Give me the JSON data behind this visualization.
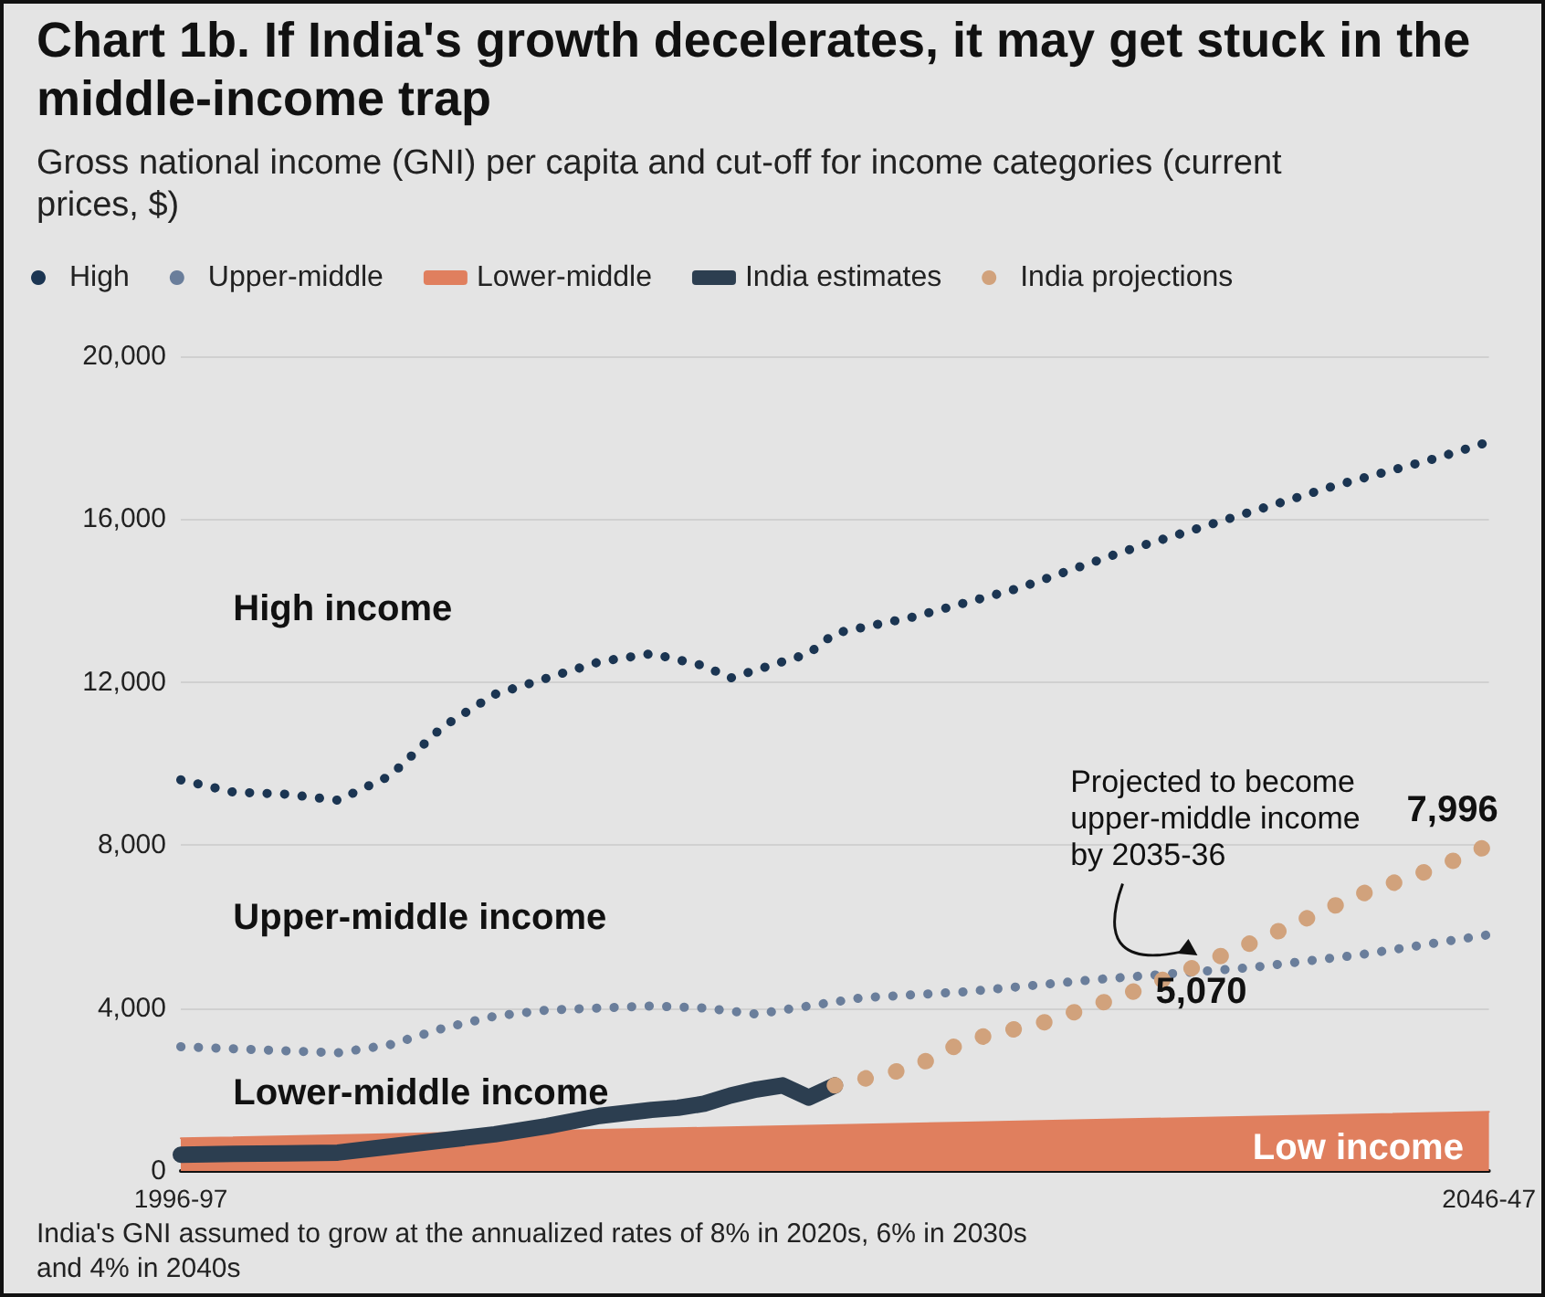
{
  "chart_data": {
    "type": "line",
    "title": "Chart 1b. If India's growth decelerates, it may get stuck in the middle-income trap",
    "subtitle": "Gross national income (GNI) per capita and cut-off for income categories (current prices, $)",
    "categories": [
      "1996-97",
      null,
      null,
      null,
      null,
      null,
      null,
      null,
      null,
      null,
      null,
      null,
      null,
      null,
      null,
      null,
      null,
      null,
      null,
      null,
      null,
      null,
      null,
      null,
      null,
      null,
      null,
      null,
      null,
      null,
      null,
      null,
      null,
      null,
      null,
      null,
      null,
      null,
      null,
      null,
      null,
      null,
      null,
      null,
      null,
      null,
      null,
      null,
      null,
      null,
      "2046-47"
    ],
    "series": [
      {
        "name": "High",
        "color": "#1b3552",
        "line_style": "dotted",
        "values": [
          9600,
          null,
          9300,
          null,
          9250,
          null,
          9100,
          null,
          9700,
          null,
          10900,
          null,
          11700,
          null,
          12100,
          null,
          12500,
          null,
          12700,
          null,
          12400,
          12100,
          12300,
          null,
          12700,
          13200,
          null,
          null,
          13600,
          null,
          null,
          null,
          14300,
          null,
          null,
          null,
          15200,
          null,
          null,
          null,
          16000,
          null,
          null,
          null,
          16800,
          null,
          null,
          null,
          17500,
          null,
          17900
        ]
      },
      {
        "name": "Upper-middle",
        "color": "#6a7e9b",
        "line_style": "dotted",
        "values": [
          3050,
          null,
          3000,
          null,
          2950,
          null,
          2900,
          null,
          3100,
          null,
          3500,
          null,
          3800,
          null,
          3950,
          null,
          4000,
          null,
          4050,
          null,
          4000,
          null,
          3850,
          3950,
          null,
          null,
          4250,
          null,
          null,
          null,
          4400,
          null,
          null,
          null,
          null,
          4700,
          null,
          null,
          null,
          null,
          null,
          5000,
          null,
          null,
          null,
          5300,
          null,
          null,
          null,
          null,
          5800
        ]
      },
      {
        "name": "Lower-middle",
        "type": "area",
        "color": "#e07f5e",
        "line_style": "solid",
        "values": [
          800,
          null,
          null,
          null,
          null,
          null,
          null,
          null,
          null,
          null,
          930,
          null,
          null,
          null,
          null,
          null,
          null,
          null,
          null,
          null,
          1060,
          null,
          null,
          null,
          null,
          null,
          null,
          null,
          null,
          null,
          1190,
          null,
          null,
          null,
          null,
          null,
          null,
          null,
          null,
          null,
          1320,
          null,
          null,
          null,
          null,
          null,
          null,
          null,
          null,
          null,
          1450
        ]
      },
      {
        "name": "India estimates",
        "color": "#2c3e50",
        "line_style": "solid",
        "values": [
          400,
          null,
          420,
          null,
          430,
          null,
          450,
          null,
          600,
          null,
          750,
          null,
          900,
          null,
          1100,
          null,
          1350,
          null,
          1500,
          1550,
          1650,
          1850,
          2000,
          2100,
          1800,
          2100,
          null,
          null,
          null,
          null,
          null,
          null,
          null,
          null,
          null,
          null,
          null,
          null,
          null,
          null,
          null,
          null,
          null,
          null,
          null,
          null,
          null,
          null,
          null,
          null,
          null
        ]
      },
      {
        "name": "India projections",
        "color": "#d1a27c",
        "line_style": "dotted",
        "values": [
          null,
          null,
          null,
          null,
          null,
          null,
          null,
          null,
          null,
          null,
          null,
          null,
          null,
          null,
          null,
          null,
          null,
          null,
          null,
          null,
          null,
          null,
          null,
          null,
          null,
          2100,
          null,
          null,
          2540,
          null,
          3200,
          null,
          null,
          3650,
          null,
          null,
          4300,
          null,
          null,
          5070,
          null,
          null,
          5900,
          null,
          null,
          6770,
          null,
          null,
          7440,
          null,
          7996
        ],
        "value_labels": [
          null,
          null,
          null,
          null,
          null,
          null,
          null,
          null,
          null,
          null,
          null,
          null,
          null,
          null,
          null,
          null,
          null,
          null,
          null,
          null,
          null,
          null,
          null,
          null,
          null,
          null,
          null,
          null,
          null,
          null,
          null,
          null,
          null,
          null,
          null,
          null,
          null,
          null,
          null,
          "5,070",
          null,
          null,
          null,
          null,
          null,
          null,
          null,
          null,
          null,
          null,
          "7,996"
        ]
      }
    ],
    "ylim": [
      0,
      20000
    ],
    "yticks": [
      {
        "value": 0,
        "label": "0"
      },
      {
        "value": 4000,
        "label": "4,000"
      },
      {
        "value": 8000,
        "label": "8,000"
      },
      {
        "value": 12000,
        "label": "12,000"
      },
      {
        "value": 16000,
        "label": "16,000"
      },
      {
        "value": 20000,
        "label": "20,000"
      }
    ],
    "grid": "y",
    "legend": "top",
    "marker": "none",
    "annotations": [
      "High income",
      "Upper-middle income",
      "Lower-middle income",
      "Low income",
      {
        "text": "Projected to become upper-middle income by 2035-36",
        "y": 5070
      },
      "India's GNI assumed to grow at the annualized rates of 8% in 2020s, 6% in 2030s and 4% in 2040s"
    ]
  }
}
